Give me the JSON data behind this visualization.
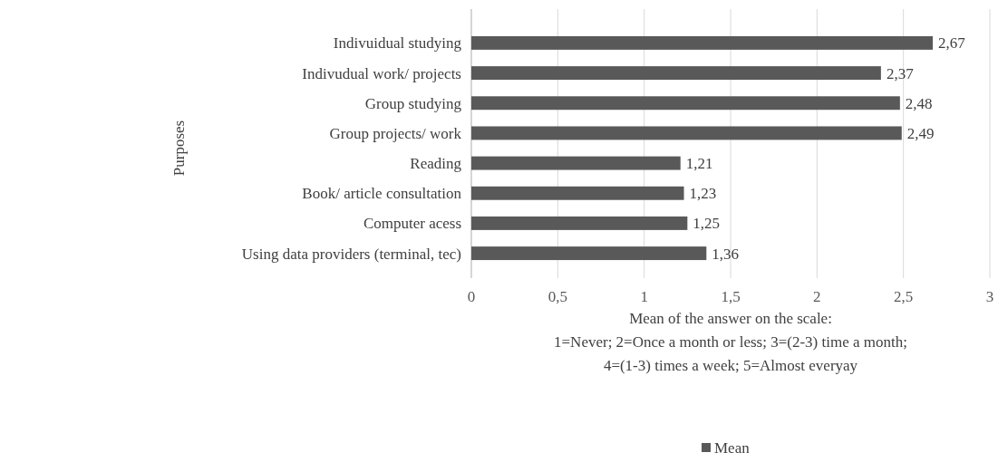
{
  "chart_data": {
    "type": "bar",
    "orientation": "horizontal",
    "ylabel": "Purposes",
    "xlabel": "Mean of the answer on the scale:\n1=Never; 2=Once a month or less; 3=(2-3) time a month;\n4=(1-3) times a week; 5=Almost everyay",
    "categories": [
      "Indivuidual studying",
      "Indivudual work/ projects",
      "Group studying",
      "Group projects/ work",
      "Reading",
      "Book/ article consultation",
      "Computer acess",
      "Using data providers (terminal, tec)"
    ],
    "series": [
      {
        "name": "Mean",
        "color": "#595959",
        "values": [
          2.67,
          2.37,
          2.48,
          2.49,
          1.21,
          1.23,
          1.25,
          1.36
        ],
        "value_labels": [
          "2,67",
          "2,37",
          "2,48",
          "2,49",
          "1,21",
          "1,23",
          "1,25",
          "1,36"
        ]
      }
    ],
    "xlim": [
      0,
      3
    ],
    "xticks": [
      0,
      {
        "value": 0.5,
        "label": "0,5"
      },
      1,
      {
        "value": 1.5,
        "label": "1,5"
      },
      2,
      {
        "value": 2.5,
        "label": "2,5"
      },
      3
    ],
    "grid": "x",
    "legend": "bottom"
  }
}
